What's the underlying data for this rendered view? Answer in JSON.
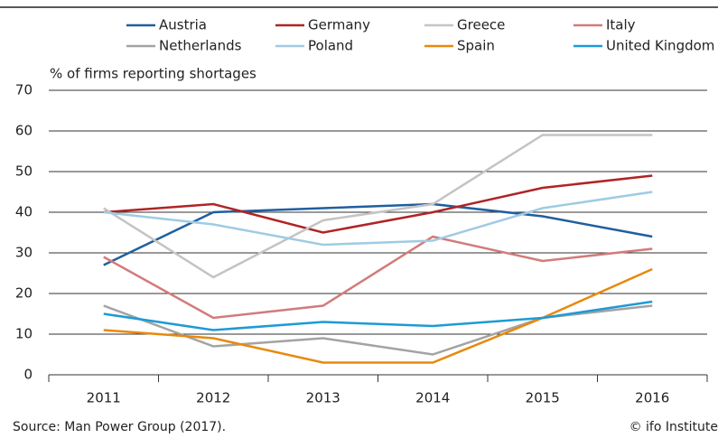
{
  "chart_data": {
    "type": "line",
    "y_label": "% of firms reporting shortages",
    "categories": [
      "2011",
      "2012",
      "2013",
      "2014",
      "2015",
      "2016"
    ],
    "series": [
      {
        "name": "Austria",
        "color": "#1f5f9e",
        "values": [
          27,
          40,
          41,
          42,
          39,
          34
        ]
      },
      {
        "name": "Germany",
        "color": "#b02424",
        "values": [
          40,
          42,
          35,
          40,
          46,
          49
        ]
      },
      {
        "name": "Greece",
        "color": "#c4c4c4",
        "values": [
          41,
          24,
          38,
          42,
          59,
          59
        ]
      },
      {
        "name": "Italy",
        "color": "#d27b7b",
        "values": [
          29,
          14,
          17,
          34,
          28,
          31
        ]
      },
      {
        "name": "Netherlands",
        "color": "#a3a3a3",
        "values": [
          17,
          7,
          9,
          5,
          14,
          17
        ]
      },
      {
        "name": "Poland",
        "color": "#9fcbe3",
        "values": [
          40,
          37,
          32,
          33,
          41,
          45
        ]
      },
      {
        "name": "Spain",
        "color": "#e8890c",
        "values": [
          11,
          9,
          3,
          3,
          14,
          26
        ]
      },
      {
        "name": "United Kingdom",
        "color": "#1e9ad6",
        "values": [
          15,
          11,
          13,
          12,
          14,
          18
        ]
      }
    ],
    "ylim": [
      0,
      70
    ],
    "yticks": [
      0,
      10,
      20,
      30,
      40,
      50,
      60,
      70
    ],
    "grid": true,
    "source": "Source: Man Power Group (2017).",
    "credit": "© ifo Institute"
  }
}
